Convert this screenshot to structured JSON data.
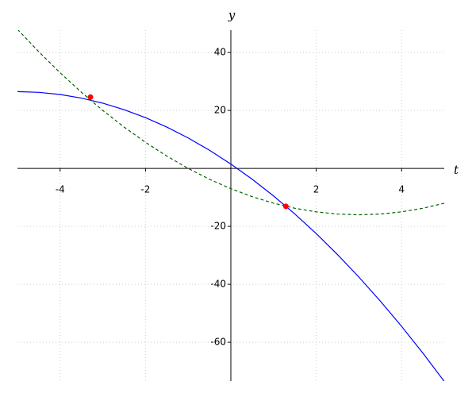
{
  "chart_data": {
    "type": "line",
    "xlabel": "t",
    "ylabel": "y",
    "x": [
      -5,
      -4.5,
      -4,
      -3.5,
      -3,
      -2.5,
      -2,
      -1.5,
      -1,
      -0.5,
      0,
      0.5,
      1,
      1.5,
      2,
      2.5,
      3,
      3.5,
      4,
      4.5,
      5
    ],
    "series": [
      {
        "color": "#0000ff",
        "style": "solid",
        "values": [
          26.5,
          26.25,
          25.5,
          24.25,
          22.5,
          20.25,
          17.5,
          14.25,
          10.5,
          6.25,
          1.5,
          -3.75,
          -9.5,
          -15.75,
          -22.5,
          -29.75,
          -37.5,
          -45.75,
          -54.5,
          -63.75,
          -73.5
        ]
      },
      {
        "color": "#006400",
        "style": "dashed",
        "values": [
          48,
          40.25,
          33,
          26.25,
          20,
          14.25,
          9,
          4.25,
          0,
          -3.75,
          -7,
          -9.75,
          -12,
          -13.75,
          -15,
          -15.75,
          -16,
          -15.75,
          -15,
          -13.75,
          -12
        ]
      }
    ],
    "points": {
      "color": "#ff0000",
      "x": [
        -3.29,
        1.29
      ],
      "values": [
        24.6,
        -13.1
      ]
    },
    "xlim": [
      -5,
      5
    ],
    "ylim": [
      -73.4,
      47.7
    ],
    "xticks": [
      -4,
      -2,
      2,
      4
    ],
    "yticks": [
      -60,
      -40,
      -20,
      20,
      40
    ],
    "grid": true
  }
}
